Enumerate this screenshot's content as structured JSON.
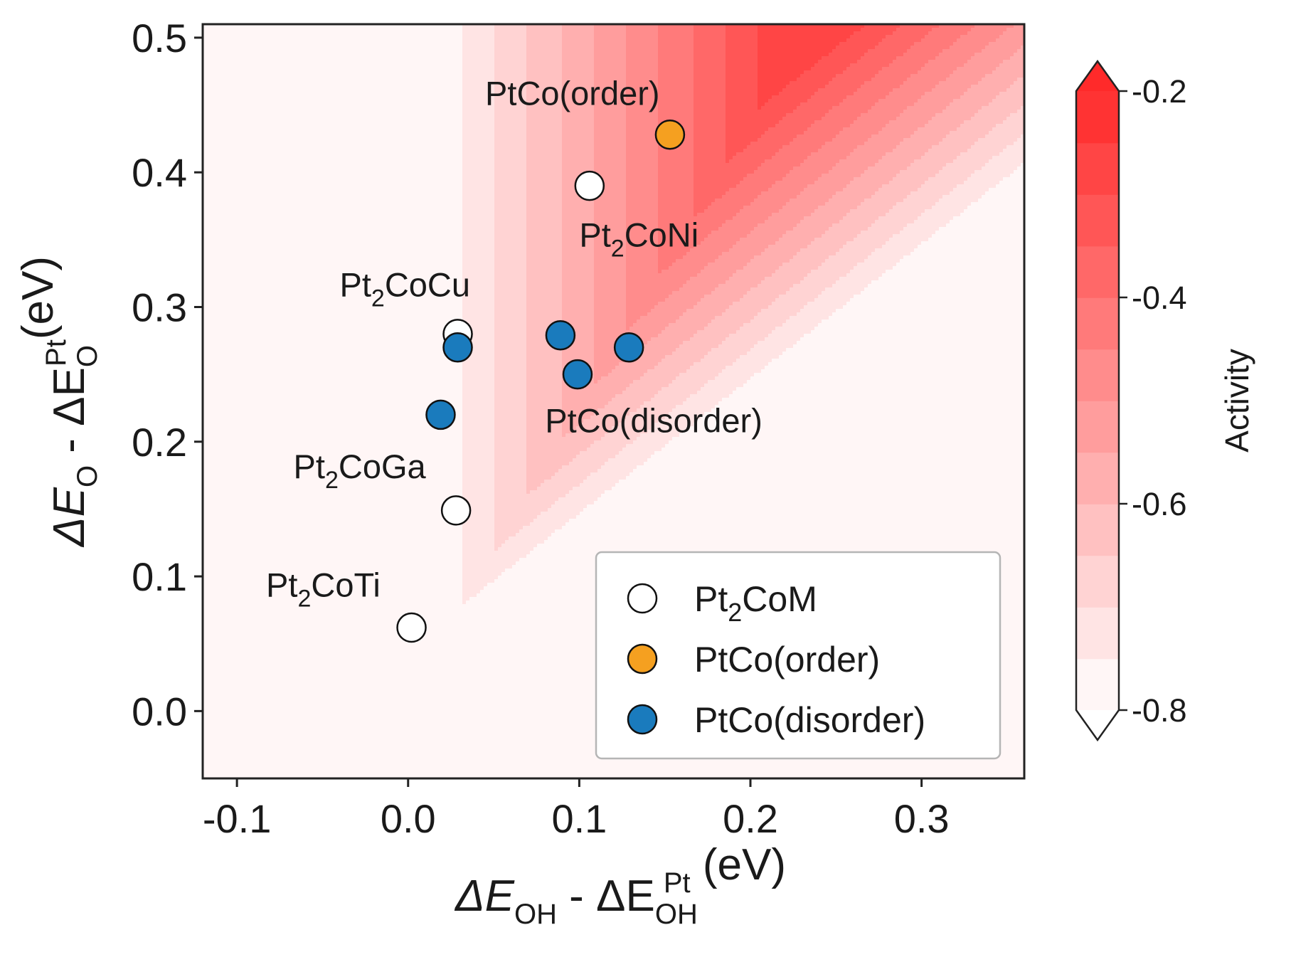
{
  "chart_data": {
    "type": "scatter",
    "title": "",
    "xlabel": {
      "main": "ΔE",
      "sub1": "OH",
      "mid": " - ΔE",
      "sub2": "OH",
      "sup2": "Pt",
      "unit": " (eV)"
    },
    "ylabel": {
      "main": "ΔE",
      "sub1": "O",
      "mid": " - ΔE",
      "sub2": "O",
      "sup2": "Pt",
      "unit": "(eV)"
    },
    "xlim": [
      -0.12,
      0.36
    ],
    "ylim": [
      -0.05,
      0.51
    ],
    "xticks": [
      {
        "value": -0.1,
        "label": "-0.1"
      },
      {
        "value": 0.0,
        "label": "0.0"
      },
      {
        "value": 0.1,
        "label": "0.1"
      },
      {
        "value": 0.2,
        "label": "0.2"
      },
      {
        "value": 0.3,
        "label": "0.3"
      }
    ],
    "yticks": [
      {
        "value": 0.0,
        "label": "0.0"
      },
      {
        "value": 0.1,
        "label": "0.1"
      },
      {
        "value": 0.2,
        "label": "0.2"
      },
      {
        "value": 0.3,
        "label": "0.3"
      },
      {
        "value": 0.4,
        "label": "0.4"
      },
      {
        "value": 0.5,
        "label": "0.5"
      }
    ],
    "background": {
      "description": "filled contour of activity; maximum near x=0.22, y=0.48",
      "peak": {
        "x": 0.22,
        "y": 0.48
      },
      "levels": [
        -0.8,
        -0.75,
        -0.7,
        -0.65,
        -0.6,
        -0.55,
        -0.5,
        -0.45,
        -0.4,
        -0.35,
        -0.3,
        -0.25,
        -0.2
      ]
    },
    "series": [
      {
        "name": "Pt2CoM",
        "color": "#ffffff",
        "points": [
          {
            "x": 0.106,
            "y": 0.39
          },
          {
            "x": 0.029,
            "y": 0.28
          },
          {
            "x": 0.028,
            "y": 0.149
          },
          {
            "x": 0.002,
            "y": 0.062
          }
        ]
      },
      {
        "name": "PtCo(order)",
        "color": "#f5a020",
        "points": [
          {
            "x": 0.153,
            "y": 0.428
          }
        ]
      },
      {
        "name": "PtCo(disorder)",
        "color": "#1a7bbd",
        "points": [
          {
            "x": 0.029,
            "y": 0.27
          },
          {
            "x": 0.019,
            "y": 0.22
          },
          {
            "x": 0.089,
            "y": 0.279
          },
          {
            "x": 0.099,
            "y": 0.25
          },
          {
            "x": 0.129,
            "y": 0.27
          }
        ]
      }
    ],
    "annotations": [
      {
        "text": "PtCo(order)",
        "x": 0.045,
        "y": 0.45
      },
      {
        "text": "Pt",
        "sub": "2",
        "rest": "CoNi",
        "x": 0.1,
        "y": 0.345
      },
      {
        "text": "Pt",
        "sub": "2",
        "rest": "CoCu",
        "x": -0.04,
        "y": 0.308
      },
      {
        "text": "PtCo(disorder)",
        "x": 0.08,
        "y": 0.207
      },
      {
        "text": "Pt",
        "sub": "2",
        "rest": "CoGa",
        "x": -0.067,
        "y": 0.173
      },
      {
        "text": "Pt",
        "sub": "2",
        "rest": "CoTi",
        "x": -0.083,
        "y": 0.085
      }
    ],
    "legend": {
      "position": "bottom-right",
      "entries": [
        {
          "text": "Pt",
          "sub": "2",
          "rest": "CoM",
          "color": "#ffffff"
        },
        {
          "text": "PtCo(order)",
          "color": "#f5a020"
        },
        {
          "text": "PtCo(disorder)",
          "color": "#1a7bbd"
        }
      ]
    },
    "colorbar": {
      "label": "Activity",
      "range": [
        -0.8,
        -0.2
      ],
      "ticks": [
        {
          "value": -0.2,
          "label": "-0.2"
        },
        {
          "value": -0.4,
          "label": "-0.4"
        },
        {
          "value": -0.6,
          "label": "-0.6"
        },
        {
          "value": -0.8,
          "label": "-0.8"
        }
      ],
      "color_low": "#ffffff",
      "color_high": "#ff2a2a"
    }
  }
}
